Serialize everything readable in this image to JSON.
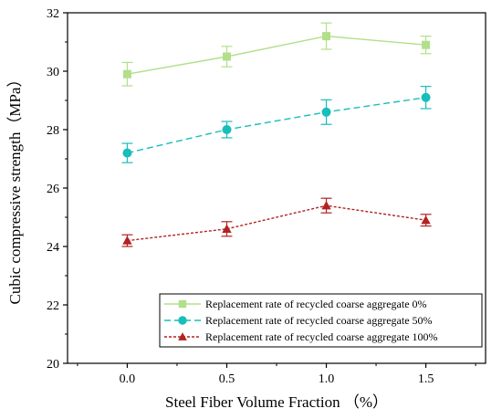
{
  "chart_data": {
    "type": "line",
    "title": "",
    "xlabel": "Steel Fiber Volume Fraction （%）",
    "ylabel": "Cubic compressive strength（MPa）",
    "x": [
      0.0,
      0.5,
      1.0,
      1.5
    ],
    "x_tick_labels": [
      "0.0",
      "0.5",
      "1.0",
      "1.5"
    ],
    "xlim": [
      -0.3,
      1.8
    ],
    "ylim": [
      20,
      32
    ],
    "y_ticks": [
      20,
      22,
      24,
      26,
      28,
      30,
      32
    ],
    "grid": false,
    "legend_position": "bottom-right",
    "series": [
      {
        "name": "Replacement rate of recycled coarse aggregate 0%",
        "values": [
          29.9,
          30.5,
          31.2,
          30.9
        ],
        "error": [
          0.4,
          0.35,
          0.45,
          0.3
        ],
        "color": "#b2df8a",
        "marker": "square",
        "line_style": "solid"
      },
      {
        "name": "Replacement rate of recycled coarse aggregate 50%",
        "values": [
          27.2,
          28.0,
          28.6,
          29.1
        ],
        "error": [
          0.33,
          0.28,
          0.42,
          0.38
        ],
        "color": "#17bebb",
        "marker": "circle",
        "line_style": "dashed"
      },
      {
        "name": "Replacement rate of recycled coarse aggregate 100%",
        "values": [
          24.2,
          24.6,
          25.4,
          24.9
        ],
        "error": [
          0.2,
          0.25,
          0.25,
          0.2
        ],
        "color": "#b22222",
        "marker": "triangle",
        "line_style": "dotted"
      }
    ]
  }
}
